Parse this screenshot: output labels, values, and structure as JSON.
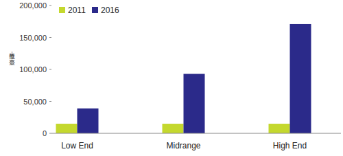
{
  "chart_data": {
    "type": "bar",
    "y_label": "單位：臺",
    "categories": [
      "Low End",
      "Midrange",
      "High End"
    ],
    "series": [
      {
        "name": "2011",
        "color": "#c4d82e",
        "values": [
          15000,
          15000,
          15000
        ]
      },
      {
        "name": "2016",
        "color": "#2b2a8a",
        "values": [
          39000,
          93000,
          171000
        ]
      }
    ],
    "ylim": [
      0,
      200000
    ],
    "yticks": [
      0,
      {
        "value": 50000,
        "label": "50,000"
      },
      {
        "value": 100000,
        "label": "100,000"
      },
      {
        "value": 150000,
        "label": "150,000"
      },
      {
        "value": 200000,
        "label": "200,000"
      }
    ],
    "grid": false,
    "legend": "top-left"
  }
}
